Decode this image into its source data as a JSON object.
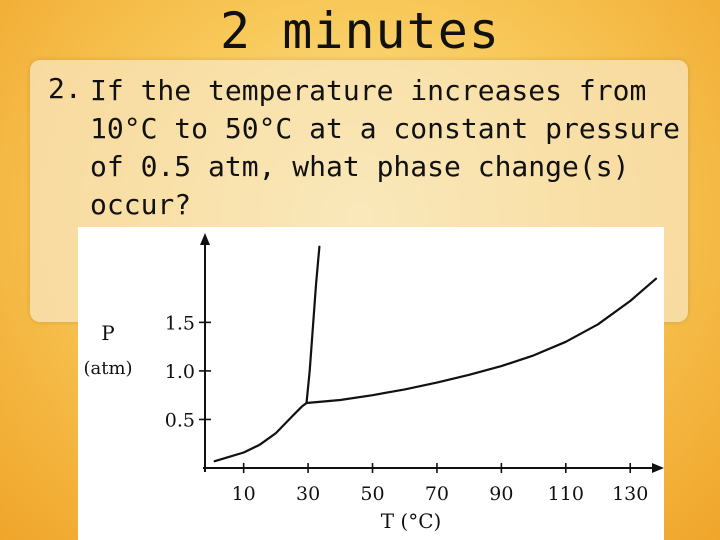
{
  "slide": {
    "title": "2 minutes",
    "question_number": "2.",
    "question_text": "If the temperature increases from 10°C to 50°C at a constant pressure of 0.5 atm, what phase change(s) occur?"
  },
  "chart_data": {
    "type": "line",
    "title": "",
    "xlabel": "T (°C)",
    "ylabel_main": "P",
    "ylabel_unit": "(atm)",
    "xlim": [
      -2,
      138
    ],
    "ylim": [
      0,
      2.4
    ],
    "x_ticks": [
      10,
      30,
      50,
      70,
      90,
      110,
      130
    ],
    "y_ticks": [
      0.5,
      1.0,
      1.5
    ],
    "y_tick_labels": [
      "0.5",
      "1.0",
      "1.5"
    ],
    "series": [
      {
        "points": [
          [
            1,
            0.07
          ],
          [
            5,
            0.11
          ],
          [
            10,
            0.16
          ],
          [
            15,
            0.24
          ],
          [
            20,
            0.36
          ],
          [
            25,
            0.53
          ],
          [
            28,
            0.63
          ],
          [
            29.5,
            0.67
          ]
        ]
      },
      {
        "points": [
          [
            29.5,
            0.67
          ],
          [
            30.5,
            1.0
          ],
          [
            31.5,
            1.45
          ],
          [
            32.5,
            1.9
          ],
          [
            33.5,
            2.28
          ]
        ]
      },
      {
        "points": [
          [
            29.5,
            0.67
          ],
          [
            40,
            0.7
          ],
          [
            50,
            0.75
          ],
          [
            60,
            0.81
          ],
          [
            70,
            0.88
          ],
          [
            80,
            0.96
          ],
          [
            90,
            1.05
          ],
          [
            100,
            1.16
          ],
          [
            110,
            1.3
          ],
          [
            120,
            1.48
          ],
          [
            130,
            1.72
          ],
          [
            138,
            1.95
          ]
        ]
      }
    ],
    "grid": false,
    "legend": "none"
  }
}
